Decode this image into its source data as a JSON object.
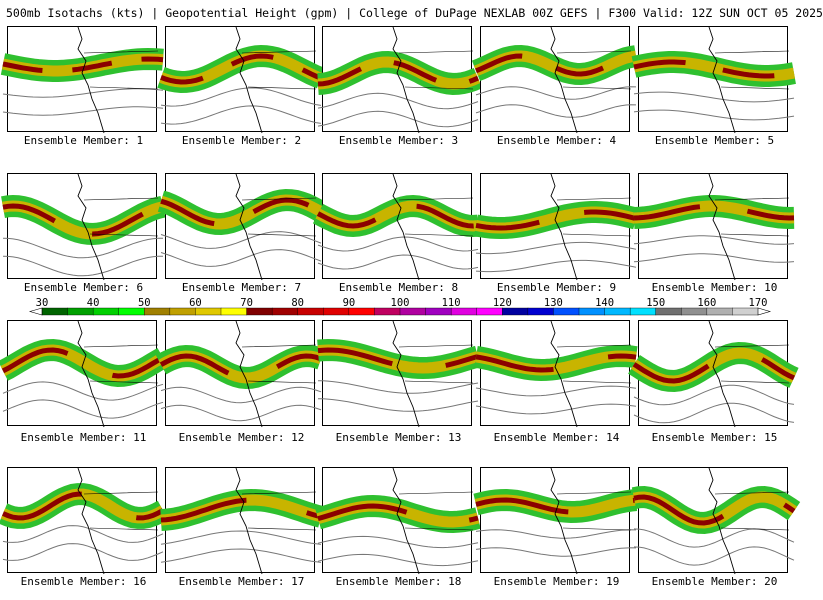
{
  "header": "500mb Isotachs (kts) | Geopotential Height (gpm) | College of DuPage NEXLAB   00Z GEFS | F300 Valid: 12Z SUN OCT 05 2025",
  "members": [
    "Ensemble Member: 1",
    "Ensemble Member: 2",
    "Ensemble Member: 3",
    "Ensemble Member: 4",
    "Ensemble Member: 5",
    "Ensemble Member: 6",
    "Ensemble Member: 7",
    "Ensemble Member: 8",
    "Ensemble Member: 9",
    "Ensemble Member: 10",
    "Ensemble Member: 11",
    "Ensemble Member: 12",
    "Ensemble Member: 13",
    "Ensemble Member: 14",
    "Ensemble Member: 15",
    "Ensemble Member: 16",
    "Ensemble Member: 17",
    "Ensemble Member: 18",
    "Ensemble Member: 19",
    "Ensemble Member: 20"
  ],
  "colorbar": {
    "ticks": [
      "30",
      "40",
      "50",
      "60",
      "70",
      "80",
      "90",
      "100",
      "110",
      "120",
      "130",
      "140",
      "150",
      "160",
      "170"
    ],
    "colors": [
      "#006400",
      "#00a000",
      "#00d000",
      "#00ff00",
      "#a08000",
      "#c0a000",
      "#e0c800",
      "#ffff00",
      "#800000",
      "#a00000",
      "#c80000",
      "#e00000",
      "#ff0000",
      "#c00060",
      "#b000a0",
      "#a000c0",
      "#e000e0",
      "#ff00ff",
      "#0000a0",
      "#0000d0",
      "#0050ff",
      "#0090ff",
      "#00b8ff",
      "#00e0ff",
      "#707070",
      "#909090",
      "#b0b0b0",
      "#d0d0d0"
    ]
  }
}
